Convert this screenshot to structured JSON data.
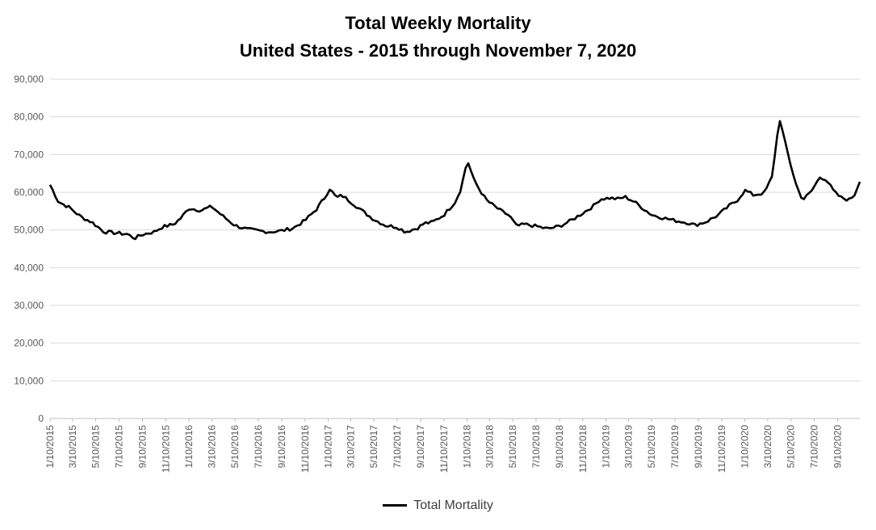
{
  "chart_data": {
    "type": "line",
    "title": "Total Weekly Mortality",
    "subtitle": "United States - 2015 through November 7, 2020",
    "xlabel": "",
    "ylabel": "",
    "ylim": [
      0,
      90000
    ],
    "yticks": [
      "0",
      "10,000",
      "20,000",
      "30,000",
      "40,000",
      "50,000",
      "60,000",
      "70,000",
      "80,000",
      "90,000"
    ],
    "xticks": [
      "1/10/2015",
      "3/10/2015",
      "5/10/2015",
      "7/10/2015",
      "9/10/2015",
      "11/10/2015",
      "1/10/2016",
      "3/10/2016",
      "5/10/2016",
      "7/10/2016",
      "9/10/2016",
      "11/10/2016",
      "1/10/2017",
      "3/10/2017",
      "5/10/2017",
      "7/10/2017",
      "9/10/2017",
      "11/10/2017",
      "1/10/2018",
      "3/10/2018",
      "5/10/2018",
      "7/10/2018",
      "9/10/2018",
      "11/10/2018",
      "1/10/2019",
      "3/10/2019",
      "5/10/2019",
      "7/10/2019",
      "9/10/2019",
      "11/10/2019",
      "1/10/2020",
      "3/10/2020",
      "5/10/2020",
      "7/10/2020",
      "9/10/2020"
    ],
    "grid": true,
    "legend_position": "bottom",
    "series": [
      {
        "name": "Total Mortality",
        "color": "#000000",
        "x_start": "1/10/2015",
        "x_end": "11/7/2020",
        "points": [
          [
            "1/10/2015",
            62000
          ],
          [
            "2/1/2015",
            57500
          ],
          [
            "3/1/2015",
            56000
          ],
          [
            "4/1/2015",
            53500
          ],
          [
            "5/1/2015",
            52000
          ],
          [
            "6/1/2015",
            49500
          ],
          [
            "7/1/2015",
            49200
          ],
          [
            "8/1/2015",
            48900
          ],
          [
            "8/20/2015",
            47800
          ],
          [
            "9/10/2015",
            48800
          ],
          [
            "10/10/2015",
            49500
          ],
          [
            "11/1/2015",
            50800
          ],
          [
            "12/1/2015",
            51500
          ],
          [
            "12/20/2015",
            53200
          ],
          [
            "1/10/2016",
            55800
          ],
          [
            "2/10/2016",
            55200
          ],
          [
            "3/10/2016",
            56200
          ],
          [
            "4/10/2016",
            53500
          ],
          [
            "5/10/2016",
            51200
          ],
          [
            "6/10/2016",
            50200
          ],
          [
            "7/10/2016",
            49800
          ],
          [
            "8/10/2016",
            49500
          ],
          [
            "9/10/2016",
            49800
          ],
          [
            "10/10/2016",
            50500
          ],
          [
            "11/10/2016",
            52500
          ],
          [
            "12/10/2016",
            55500
          ],
          [
            "12/31/2016",
            58500
          ],
          [
            "1/14/2017",
            61000
          ],
          [
            "2/1/2017",
            58500
          ],
          [
            "2/15/2017",
            59200
          ],
          [
            "3/10/2017",
            57500
          ],
          [
            "4/10/2017",
            55000
          ],
          [
            "5/10/2017",
            52800
          ],
          [
            "6/10/2017",
            51200
          ],
          [
            "7/10/2017",
            50800
          ],
          [
            "8/1/2017",
            49500
          ],
          [
            "9/1/2017",
            50500
          ],
          [
            "9/20/2017",
            51800
          ],
          [
            "10/10/2017",
            52000
          ],
          [
            "11/10/2017",
            54000
          ],
          [
            "12/10/2017",
            57500
          ],
          [
            "12/25/2017",
            61000
          ],
          [
            "1/6/2018",
            66500
          ],
          [
            "1/13/2018",
            67800
          ],
          [
            "1/27/2018",
            63500
          ],
          [
            "2/10/2018",
            61000
          ],
          [
            "3/1/2018",
            58000
          ],
          [
            "3/20/2018",
            56500
          ],
          [
            "4/10/2018",
            55000
          ],
          [
            "5/1/2018",
            53800
          ],
          [
            "5/20/2018",
            51000
          ],
          [
            "6/10/2018",
            51500
          ],
          [
            "7/10/2018",
            51000
          ],
          [
            "8/10/2018",
            50300
          ],
          [
            "9/10/2018",
            51000
          ],
          [
            "10/10/2018",
            52500
          ],
          [
            "11/10/2018",
            54500
          ],
          [
            "12/10/2018",
            56500
          ],
          [
            "12/25/2018",
            58200
          ],
          [
            "1/20/2019",
            58500
          ],
          [
            "2/10/2019",
            58200
          ],
          [
            "3/1/2019",
            58800
          ],
          [
            "3/25/2019",
            57500
          ],
          [
            "4/20/2019",
            55500
          ],
          [
            "5/10/2019",
            54000
          ],
          [
            "6/10/2019",
            53200
          ],
          [
            "7/10/2019",
            52500
          ],
          [
            "8/10/2019",
            52000
          ],
          [
            "9/1/2019",
            51300
          ],
          [
            "10/1/2019",
            52200
          ],
          [
            "11/1/2019",
            54000
          ],
          [
            "12/1/2019",
            56500
          ],
          [
            "12/20/2019",
            57800
          ],
          [
            "1/10/2020",
            60500
          ],
          [
            "2/1/2020",
            59300
          ],
          [
            "3/1/2020",
            59800
          ],
          [
            "3/21/2020",
            64000
          ],
          [
            "4/4/2020",
            75000
          ],
          [
            "4/11/2020",
            79200
          ],
          [
            "4/25/2020",
            73000
          ],
          [
            "5/10/2020",
            67000
          ],
          [
            "5/25/2020",
            61500
          ],
          [
            "6/10/2020",
            58000
          ],
          [
            "7/1/2020",
            60000
          ],
          [
            "7/25/2020",
            64000
          ],
          [
            "8/10/2020",
            63500
          ],
          [
            "9/1/2020",
            60000
          ],
          [
            "9/20/2020",
            58500
          ],
          [
            "10/10/2020",
            58000
          ],
          [
            "10/25/2020",
            59500
          ],
          [
            "11/7/2020",
            63200
          ]
        ]
      }
    ]
  }
}
